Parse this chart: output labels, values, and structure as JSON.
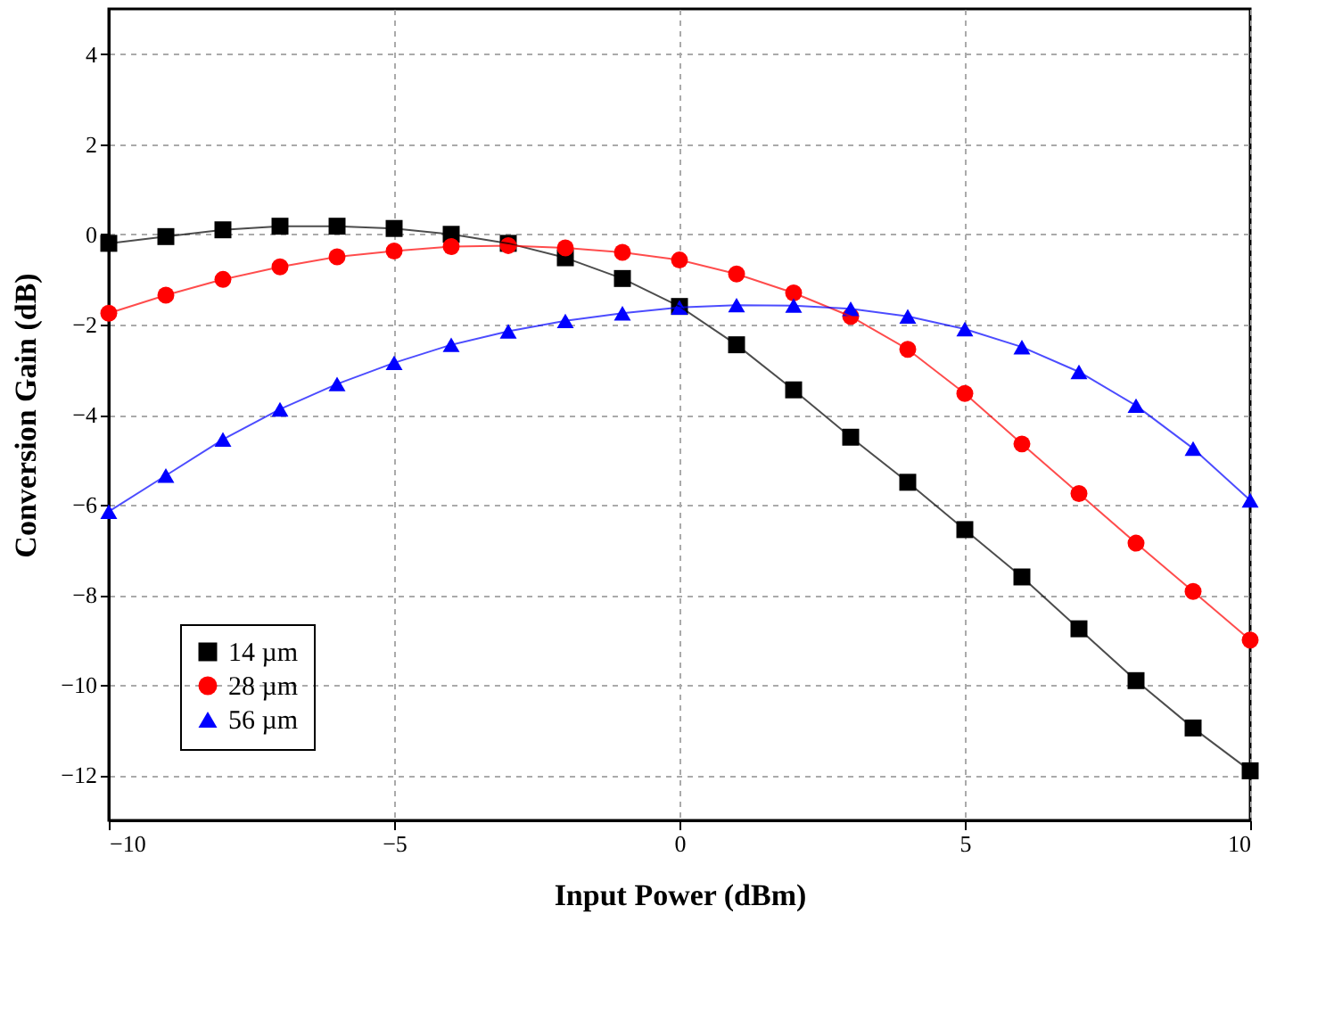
{
  "chart_data": {
    "type": "line",
    "xlabel": "Input Power (dBm)",
    "ylabel": "Conversion Gain (dB)",
    "x": [
      -10,
      -9,
      -8,
      -7,
      -6,
      -5,
      -4,
      -3,
      -2,
      -1,
      0,
      1,
      2,
      3,
      4,
      5,
      6,
      7,
      8,
      9,
      10
    ],
    "series": [
      {
        "name": "14 µm",
        "color": "#000000",
        "marker": "square",
        "values": [
          -0.2,
          -0.05,
          0.1,
          0.18,
          0.18,
          0.13,
          0.0,
          -0.2,
          -0.52,
          -0.98,
          -1.6,
          -2.45,
          -3.45,
          -4.5,
          -5.5,
          -6.55,
          -7.6,
          -8.75,
          -9.9,
          -10.95,
          -11.9
        ]
      },
      {
        "name": "28 µm",
        "color": "#ff0000",
        "marker": "circle",
        "values": [
          -1.75,
          -1.35,
          -1.0,
          -0.72,
          -0.5,
          -0.37,
          -0.27,
          -0.25,
          -0.3,
          -0.4,
          -0.57,
          -0.88,
          -1.3,
          -1.82,
          -2.55,
          -3.53,
          -4.65,
          -5.75,
          -6.85,
          -7.92,
          -9.0
        ]
      },
      {
        "name": "56 µm",
        "color": "#0000ff",
        "marker": "triangle",
        "values": [
          -6.15,
          -5.35,
          -4.55,
          -3.88,
          -3.32,
          -2.85,
          -2.45,
          -2.15,
          -1.92,
          -1.75,
          -1.62,
          -1.57,
          -1.58,
          -1.65,
          -1.82,
          -2.1,
          -2.5,
          -3.05,
          -3.8,
          -4.75,
          -5.9
        ]
      }
    ],
    "xlim": [
      -10,
      10
    ],
    "xticks": [
      -10,
      -5,
      0,
      5,
      10
    ],
    "ylim": [
      -13,
      5
    ],
    "yticks": [
      -12,
      -10,
      -8,
      -6,
      -4,
      -2,
      0,
      2,
      4
    ],
    "grid": true,
    "legend": "bottom left"
  }
}
